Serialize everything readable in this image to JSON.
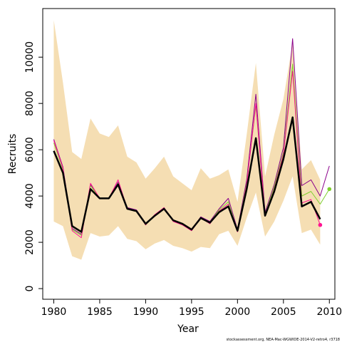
{
  "chart_data": {
    "type": "line",
    "x_label": "Year",
    "y_label": "Recruits",
    "note": "stockassessment.org, NEA-Mac-WGWIDE-2014-V2-retro4, r3718",
    "x": [
      1980,
      1981,
      1982,
      1983,
      1984,
      1985,
      1986,
      1987,
      1988,
      1989,
      1990,
      1991,
      1992,
      1993,
      1994,
      1995,
      1996,
      1997,
      1998,
      1999,
      2000,
      2001,
      2002,
      2003,
      2004,
      2005,
      2006,
      2007,
      2008,
      2009,
      2010
    ],
    "band": {
      "color": "#f5deb3",
      "upper": [
        11600,
        8900,
        5900,
        5600,
        7350,
        6700,
        6550,
        7050,
        5700,
        5450,
        4750,
        5200,
        5700,
        4850,
        4550,
        4250,
        5200,
        4750,
        4900,
        5150,
        3750,
        6650,
        9750,
        4850,
        6650,
        8200,
        10600,
        5150,
        5550,
        4700,
        null
      ],
      "lower": [
        2900,
        2700,
        1400,
        1250,
        2400,
        2250,
        2300,
        2700,
        2150,
        2050,
        1700,
        1950,
        2100,
        1850,
        1750,
        1600,
        1800,
        1750,
        2350,
        2500,
        1850,
        3050,
        4150,
        2250,
        2900,
        3800,
        4850,
        2400,
        2550,
        1900,
        null
      ]
    },
    "series": [
      {
        "color": "#8b008b",
        "width": 1,
        "marker_last": false,
        "values": [
          6450,
          5250,
          2600,
          2350,
          4500,
          3900,
          3900,
          4600,
          3500,
          3400,
          2800,
          3150,
          3500,
          2950,
          2800,
          2550,
          3100,
          2900,
          3450,
          3900,
          2550,
          4700,
          8400,
          3300,
          4500,
          6100,
          10800,
          4450,
          4700,
          4000,
          5300
        ]
      },
      {
        "color": "#7fcf2f",
        "width": 1,
        "marker_last": true,
        "values": [
          6300,
          5150,
          2550,
          2300,
          4450,
          3900,
          3900,
          4550,
          3450,
          3350,
          2750,
          3150,
          3450,
          2950,
          2750,
          2550,
          3050,
          2850,
          3400,
          3750,
          2500,
          4550,
          7900,
          3200,
          4400,
          5900,
          9700,
          4000,
          4200,
          3650,
          4300
        ]
      },
      {
        "color": "#ff1493",
        "width": 1,
        "marker_last": true,
        "values": [
          6400,
          5200,
          2500,
          2200,
          4550,
          3900,
          3900,
          4700,
          3450,
          3350,
          2750,
          3200,
          3500,
          2900,
          2750,
          2500,
          3050,
          2800,
          3350,
          3650,
          2450,
          4500,
          8000,
          3150,
          4300,
          5800,
          9400,
          3700,
          3850,
          2750,
          null
        ]
      },
      {
        "color": "#000000",
        "width": 2.5,
        "marker_last": false,
        "values": [
          5950,
          5000,
          2700,
          2450,
          4300,
          3900,
          3900,
          4500,
          3450,
          3350,
          2800,
          3150,
          3450,
          2950,
          2800,
          2550,
          3050,
          2850,
          3300,
          3550,
          2500,
          4300,
          6500,
          3150,
          4200,
          5600,
          7400,
          3550,
          3750,
          3000,
          null
        ]
      }
    ],
    "xlim": [
      1978.8,
      2010.6
    ],
    "ylim": [
      -460,
      12100
    ],
    "xticks": [
      1980,
      1985,
      1990,
      1995,
      2000,
      2005,
      2010
    ],
    "yticks": [
      0,
      2000,
      4000,
      6000,
      8000,
      10000
    ]
  }
}
